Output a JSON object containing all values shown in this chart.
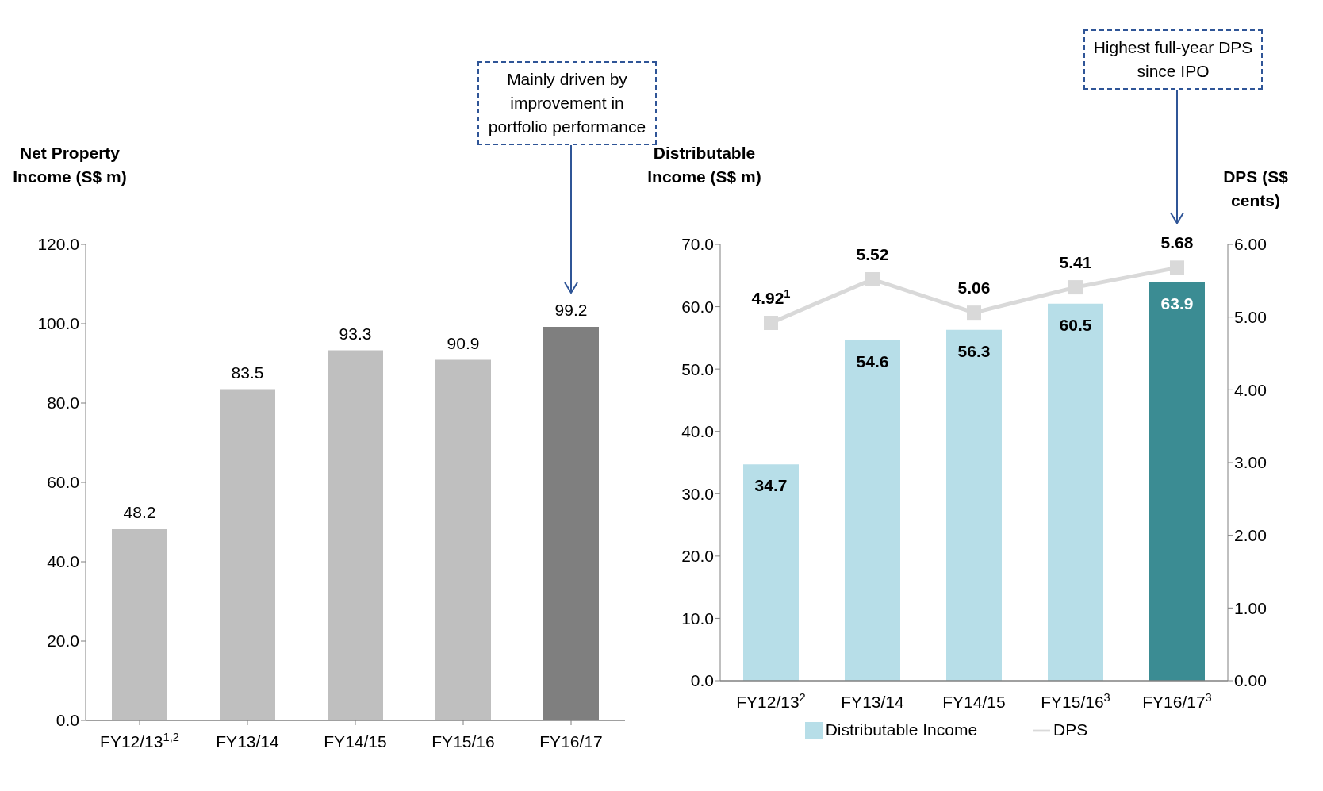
{
  "chart_data": [
    {
      "type": "bar",
      "ylabel": "Net Property Income (S$ m)",
      "categories": [
        "FY12/13$^{1,2}$",
        "FY13/14",
        "FY14/15",
        "FY15/16",
        "FY16/17"
      ],
      "values": [
        48.2,
        83.5,
        93.3,
        90.9,
        99.2
      ],
      "colors": [
        "#bfbfbf",
        "#bfbfbf",
        "#bfbfbf",
        "#bfbfbf",
        "#7f7f7f"
      ],
      "ylim": [
        0,
        120
      ],
      "yticks": [
        {
          "value": 0,
          "label": "0.0"
        },
        {
          "value": 20,
          "label": "20.0"
        },
        {
          "value": 40,
          "label": "40.0"
        },
        {
          "value": 60,
          "label": "60.0"
        },
        {
          "value": 80,
          "label": "80.0"
        },
        {
          "value": 100,
          "label": "100.0"
        },
        {
          "value": 120,
          "label": "120.0"
        }
      ],
      "data_labels": true,
      "annotations": [
        "Mainly driven by improvement in portfolio performance"
      ]
    },
    {
      "type": "bar",
      "ylabel": "Distributable Income (S$ m)",
      "y2label": "DPS (S$ cents)",
      "categories": [
        "FY12/13$^{2}$",
        "FY13/14",
        "FY14/15",
        "FY15/16$^{3}$",
        "FY16/17$^{3}$"
      ],
      "series": [
        {
          "name": "Distributable Income",
          "color": "#b7dee8",
          "colors": [
            "#b7dee8",
            "#b7dee8",
            "#b7dee8",
            "#b7dee8",
            "#3b8c93"
          ],
          "values": [
            34.7,
            54.6,
            56.3,
            60.5,
            63.9
          ]
        },
        {
          "name": "DPS",
          "type": "line",
          "axis": "y2",
          "color": "#d9d9d9",
          "marker": "square",
          "values": [
            4.92,
            5.52,
            5.06,
            5.41,
            5.68
          ],
          "value_labels": [
            "4.92$^{1}$",
            "5.52",
            "5.06",
            "5.41",
            "5.68"
          ]
        }
      ],
      "ylim": [
        0,
        70
      ],
      "yticks": [
        {
          "value": 0,
          "label": "0.0"
        },
        {
          "value": 10,
          "label": "10.0"
        },
        {
          "value": 20,
          "label": "20.0"
        },
        {
          "value": 30,
          "label": "30.0"
        },
        {
          "value": 40,
          "label": "40.0"
        },
        {
          "value": 50,
          "label": "50.0"
        },
        {
          "value": 60,
          "label": "60.0"
        },
        {
          "value": 70,
          "label": "70.0"
        }
      ],
      "y2lim": [
        0,
        6
      ],
      "y2ticks": [
        {
          "value": 0,
          "label": "0.00"
        },
        {
          "value": 1,
          "label": "1.00"
        },
        {
          "value": 2,
          "label": "2.00"
        },
        {
          "value": 3,
          "label": "3.00"
        },
        {
          "value": 4,
          "label": "4.00"
        },
        {
          "value": 5,
          "label": "5.00"
        },
        {
          "value": 6,
          "label": "6.00"
        }
      ],
      "data_labels": true,
      "legend": "bottom",
      "annotations": [
        "Highest full-year DPS since IPO"
      ]
    }
  ]
}
